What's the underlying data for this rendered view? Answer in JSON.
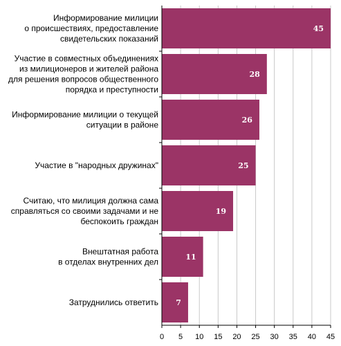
{
  "chart_data": {
    "type": "bar",
    "orientation": "horizontal",
    "categories": [
      [
        "Информирование милиции",
        "о происшествиях, предоставление",
        "свидетельских показаний"
      ],
      [
        "Участие в совместных объединениях",
        "из милиционеров и жителей района",
        "для решения вопросов общественного",
        "порядка и преступности"
      ],
      [
        "Информирование милиции о текущей",
        "ситуации в районе"
      ],
      [
        "Участие в \"народных дружинах\""
      ],
      [
        "Считаю, что милиция должна сама",
        "справляться со своими задачами и не",
        "беспокоить граждан"
      ],
      [
        "Внештатная работа",
        "в отделах внутренних дел"
      ],
      [
        "Затруднились ответить"
      ]
    ],
    "values": [
      45,
      28,
      26,
      25,
      19,
      11,
      7
    ],
    "value_labels": [
      "45",
      "28",
      "26",
      "25",
      "19",
      "11",
      "7"
    ],
    "xlim": [
      0,
      45
    ],
    "xticks": [
      "0",
      "5",
      "10",
      "15",
      "20",
      "25",
      "30",
      "35",
      "40",
      "45"
    ],
    "grid": true,
    "title": "",
    "xlabel": "",
    "ylabel": "",
    "bar_color": "#9b3466",
    "grid_color": "#c8c8c8"
  }
}
